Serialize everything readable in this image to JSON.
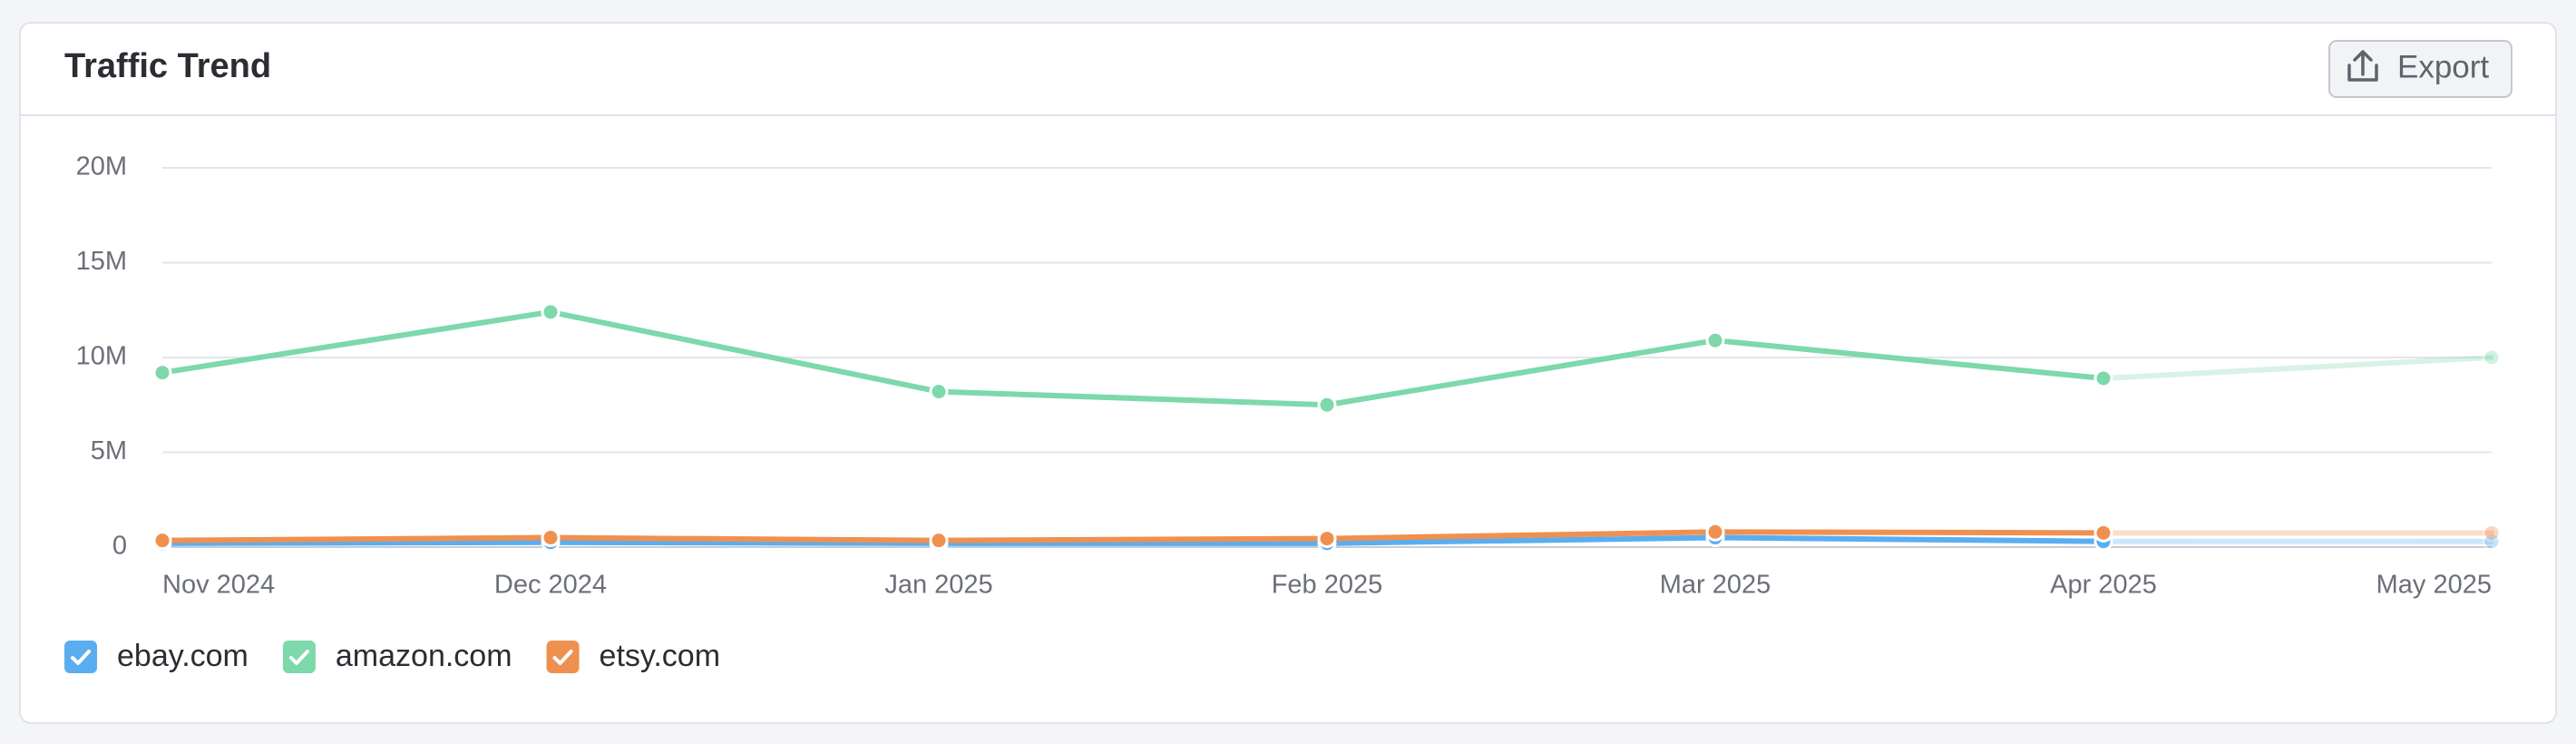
{
  "toolbar": {
    "export": "Export"
  },
  "chart_data": {
    "type": "line",
    "title": "Traffic Trend",
    "categories": [
      "Nov 2024",
      "Dec 2024",
      "Jan 2025",
      "Feb 2025",
      "Mar 2025",
      "Apr 2025",
      "May 2025"
    ],
    "series": [
      {
        "name": "ebay.com",
        "color": "#5aaef0",
        "values": [
          200000,
          250000,
          200000,
          200000,
          500000,
          300000,
          300000
        ]
      },
      {
        "name": "amazon.com",
        "color": "#7dd8aa",
        "values": [
          9200000,
          12400000,
          8200000,
          7500000,
          10900000,
          8900000,
          10000000
        ]
      },
      {
        "name": "etsy.com",
        "color": "#f0904f",
        "values": [
          350000,
          500000,
          350000,
          450000,
          800000,
          750000,
          750000
        ]
      }
    ],
    "ylim": [
      0,
      20000000
    ],
    "yticks": [
      {
        "value": 0,
        "label": "0"
      },
      {
        "value": 5000000,
        "label": "5M"
      },
      {
        "value": 10000000,
        "label": "10M"
      },
      {
        "value": 15000000,
        "label": "15M"
      },
      {
        "value": 20000000,
        "label": "20M"
      }
    ],
    "grid": true,
    "legend": "bottom"
  }
}
